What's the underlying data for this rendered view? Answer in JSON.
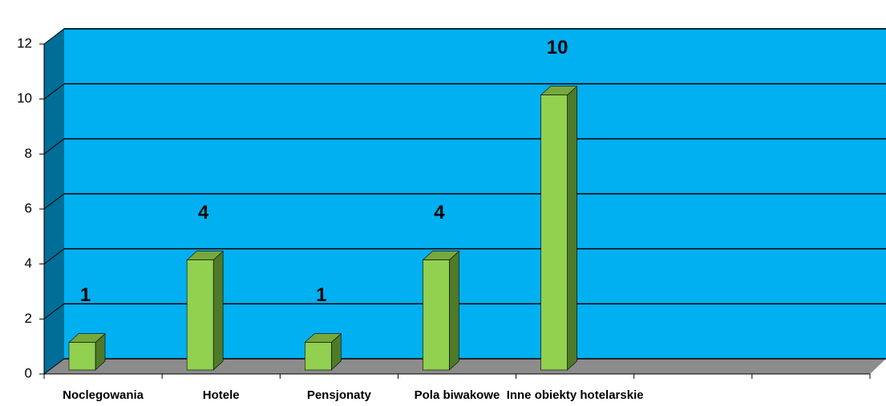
{
  "chart_data": {
    "type": "bar3d",
    "categories": [
      "Noclegowania",
      "Hotele",
      "Pensjonaty",
      "Pola biwakowe",
      "Inne obiekty hotelarskie",
      null,
      null
    ],
    "values": [
      1,
      4,
      1,
      4,
      10,
      null,
      null
    ],
    "color": "#92d050",
    "wall_color": "#00b0f0",
    "ylim": [
      0,
      12
    ],
    "yticks": [
      0,
      2,
      4,
      6,
      8,
      10,
      12
    ],
    "grid": true
  }
}
